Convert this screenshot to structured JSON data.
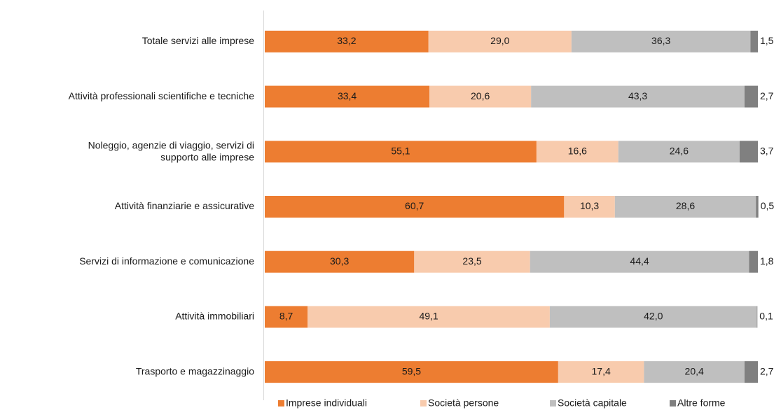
{
  "chart_data": {
    "type": "stacked-bar-horizontal",
    "categories": [
      "Totale servizi alle imprese",
      "Attività professionali scientifiche e tecniche",
      "Noleggio, agenzie di viaggio, servizi di\nsupporto alle imprese",
      "Attività finanziarie e assicurative",
      "Servizi di informazione e comunicazione",
      "Attività immobiliari",
      "Trasporto e magazzinaggio"
    ],
    "xlim": [
      0,
      100
    ],
    "legend": "bottom",
    "series": [
      {
        "name": "Imprese individuali",
        "color": "#ed7d31",
        "values": [
          33.2,
          33.4,
          55.1,
          60.7,
          30.3,
          8.7,
          59.5
        ],
        "value_labels": [
          "33,2",
          "33,4",
          "55,1",
          "60,7",
          "30,3",
          "8,7",
          "59,5"
        ]
      },
      {
        "name": "Società persone",
        "color": "#f8cbad",
        "values": [
          29.0,
          20.6,
          16.6,
          10.3,
          23.5,
          49.1,
          17.4
        ],
        "value_labels": [
          "29,0",
          "20,6",
          "16,6",
          "10,3",
          "23,5",
          "49,1",
          "17,4"
        ]
      },
      {
        "name": "Società capitale",
        "color": "#bfbfbf",
        "values": [
          36.3,
          43.3,
          24.6,
          28.6,
          44.4,
          42.0,
          20.4
        ],
        "value_labels": [
          "36,3",
          "43,3",
          "24,6",
          "28,6",
          "44,4",
          "42,0",
          "20,4"
        ]
      },
      {
        "name": "Altre forme",
        "color": "#808080",
        "values": [
          1.5,
          2.7,
          3.7,
          0.5,
          1.8,
          0.1,
          2.7
        ],
        "value_labels": [
          "1,5",
          "2,7",
          "3,7",
          "0,5",
          "1,8",
          "0,1",
          "2,7"
        ]
      }
    ]
  }
}
